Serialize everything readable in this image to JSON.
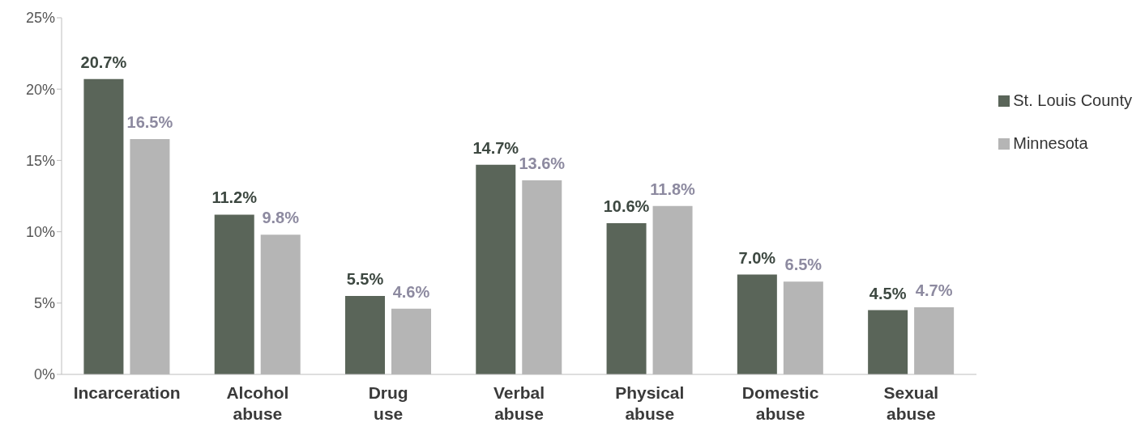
{
  "chart_data": {
    "type": "bar",
    "categories": [
      "Incarceration",
      "Alcohol abuse",
      "Drug use",
      "Verbal abuse",
      "Physical abuse",
      "Domestic abuse",
      "Sexual abuse"
    ],
    "series": [
      {
        "name": "St. Louis County",
        "color": "#5a6559",
        "values": [
          20.7,
          11.2,
          5.5,
          14.7,
          10.6,
          7.0,
          4.5
        ],
        "value_labels": [
          "20.7%",
          "11.2%",
          "5.5%",
          "14.7%",
          "10.6%",
          "7.0%",
          "4.5%"
        ]
      },
      {
        "name": "Minnesota",
        "color": "#b5b5b5",
        "values": [
          16.5,
          9.8,
          4.6,
          13.6,
          11.8,
          6.5,
          4.7
        ],
        "value_labels": [
          "16.5%",
          "9.8%",
          "4.6%",
          "13.6%",
          "11.8%",
          "6.5%",
          "4.7%"
        ]
      }
    ],
    "ylim": [
      0,
      25
    ],
    "yticks": [
      {
        "value": 0,
        "label": "0%"
      },
      {
        "value": 5,
        "label": "5%"
      },
      {
        "value": 10,
        "label": "10%"
      },
      {
        "value": 15,
        "label": "15%"
      },
      {
        "value": 20,
        "label": "20%"
      },
      {
        "value": 25,
        "label": "25%"
      }
    ],
    "grid": false,
    "legend": "right"
  }
}
